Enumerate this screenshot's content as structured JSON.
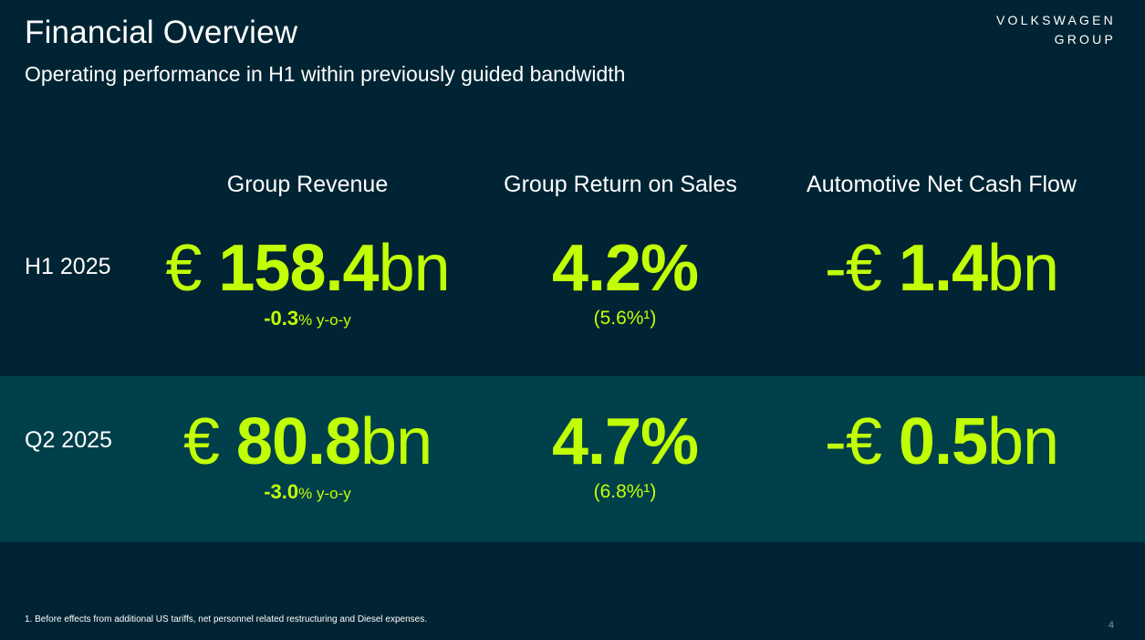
{
  "title": "Financial Overview",
  "subtitle": "Operating performance in H1 within previously guided bandwidth",
  "logo": {
    "line1": "VOLKSWAGEN",
    "line2": "GROUP"
  },
  "colors": {
    "background": "#002433",
    "band": "#00404a",
    "accent": "#c2fe06",
    "text": "#ffffff"
  },
  "columns": [
    "Group Revenue",
    "Group Return on Sales",
    "Automotive Net Cash Flow"
  ],
  "rows": [
    {
      "label": "H1 2025",
      "revenue": {
        "prefix": "€ ",
        "value": "158.4",
        "unit": "bn",
        "change": "-0.3",
        "change_unit": "% y-o-y"
      },
      "ros": {
        "value": "4.2%",
        "note": "(5.6%¹)"
      },
      "ncf": {
        "prefix": "-€ ",
        "value": "1.4",
        "unit": "bn"
      }
    },
    {
      "label": "Q2 2025",
      "revenue": {
        "prefix": "€ ",
        "value": "80.8",
        "unit": "bn",
        "change": "-3.0",
        "change_unit": "% y-o-y"
      },
      "ros": {
        "value": "4.7%",
        "note": "(6.8%¹)"
      },
      "ncf": {
        "prefix": "-€ ",
        "value": "0.5",
        "unit": "bn"
      }
    }
  ],
  "footnote": "1. Before effects from additional US tariffs, net personnel related restructuring and Diesel expenses.",
  "page_number": "4"
}
